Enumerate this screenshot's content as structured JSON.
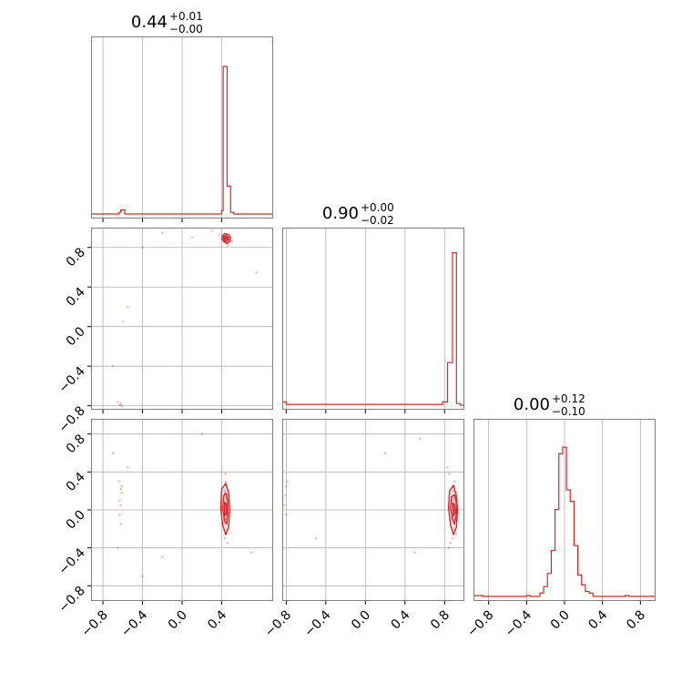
{
  "chart_data": {
    "type": "corner",
    "colors": {
      "series": "#d62728",
      "grid": "#b0b0b0",
      "frame": "#808080"
    },
    "grid": true,
    "ranges": [
      [
        -0.92,
        0.92
      ],
      [
        -0.84,
        1.0
      ],
      [
        -0.96,
        0.96
      ]
    ],
    "ticks": [
      {
        "values": [
          -0.8,
          -0.4,
          0.0,
          0.4
        ],
        "labels": [
          "−0.8",
          "−0.4",
          "0.0",
          "0.4"
        ]
      },
      {
        "values": [
          -0.8,
          -0.4,
          0.0,
          0.4,
          0.8
        ],
        "labels": [
          "−0.8",
          "−0.4",
          "0.0",
          "0.4",
          "0.8"
        ]
      },
      {
        "values": [
          -0.8,
          -0.4,
          0.0,
          0.4,
          0.8
        ],
        "labels": [
          "−0.8",
          "−0.4",
          "0.0",
          "0.4",
          "0.8"
        ]
      }
    ],
    "titles": [
      {
        "median": "0.44",
        "plus": "+0.01",
        "minus": "−0.00"
      },
      {
        "median": "0.90",
        "plus": "+0.00",
        "minus": "−0.02"
      },
      {
        "median": "0.00",
        "plus": "+0.12",
        "minus": "−0.10"
      }
    ],
    "histograms": [
      {
        "param": 0,
        "ymax": 1.0,
        "bins": [
          {
            "x0": -0.92,
            "x1": -0.64,
            "count": 0.0
          },
          {
            "x0": -0.64,
            "x1": -0.62,
            "count": 0.01
          },
          {
            "x0": -0.62,
            "x1": -0.58,
            "count": 0.025
          },
          {
            "x0": -0.58,
            "x1": 0.4,
            "count": 0.0
          },
          {
            "x0": 0.4,
            "x1": 0.415,
            "count": 0.02
          },
          {
            "x0": 0.415,
            "x1": 0.455,
            "count": 0.9
          },
          {
            "x0": 0.455,
            "x1": 0.49,
            "count": 0.17
          },
          {
            "x0": 0.49,
            "x1": 0.52,
            "count": 0.01
          },
          {
            "x0": 0.52,
            "x1": 0.92,
            "count": 0.0
          }
        ]
      },
      {
        "param": 1,
        "ymax": 1.0,
        "bins": [
          {
            "x0": -0.84,
            "x1": -0.8,
            "count": 0.02
          },
          {
            "x0": -0.8,
            "x1": 0.78,
            "count": 0.005
          },
          {
            "x0": 0.78,
            "x1": 0.83,
            "count": 0.02
          },
          {
            "x0": 0.83,
            "x1": 0.88,
            "count": 0.26
          },
          {
            "x0": 0.88,
            "x1": 0.92,
            "count": 0.93
          },
          {
            "x0": 0.92,
            "x1": 0.96,
            "count": 0.01
          },
          {
            "x0": 0.96,
            "x1": 1.0,
            "count": 0.0
          }
        ]
      },
      {
        "param": 2,
        "ymax": 1.0,
        "bins": [
          {
            "x0": -0.96,
            "x1": -0.86,
            "count": 0.005
          },
          {
            "x0": -0.86,
            "x1": -0.4,
            "count": 0.0
          },
          {
            "x0": -0.4,
            "x1": -0.36,
            "count": 0.005
          },
          {
            "x0": -0.36,
            "x1": -0.26,
            "count": 0.0
          },
          {
            "x0": -0.26,
            "x1": -0.22,
            "count": 0.02
          },
          {
            "x0": -0.22,
            "x1": -0.18,
            "count": 0.06
          },
          {
            "x0": -0.18,
            "x1": -0.14,
            "count": 0.14
          },
          {
            "x0": -0.14,
            "x1": -0.1,
            "count": 0.28
          },
          {
            "x0": -0.1,
            "x1": -0.06,
            "count": 0.53
          },
          {
            "x0": -0.06,
            "x1": -0.02,
            "count": 0.87
          },
          {
            "x0": -0.02,
            "x1": 0.02,
            "count": 0.91
          },
          {
            "x0": 0.02,
            "x1": 0.06,
            "count": 0.65
          },
          {
            "x0": 0.06,
            "x1": 0.1,
            "count": 0.58
          },
          {
            "x0": 0.1,
            "x1": 0.14,
            "count": 0.31
          },
          {
            "x0": 0.14,
            "x1": 0.18,
            "count": 0.13
          },
          {
            "x0": 0.18,
            "x1": 0.22,
            "count": 0.07
          },
          {
            "x0": 0.22,
            "x1": 0.26,
            "count": 0.03
          },
          {
            "x0": 0.26,
            "x1": 0.3,
            "count": 0.02
          },
          {
            "x0": 0.3,
            "x1": 0.64,
            "count": 0.0
          },
          {
            "x0": 0.64,
            "x1": 0.68,
            "count": 0.005
          },
          {
            "x0": 0.68,
            "x1": 0.96,
            "count": 0.0
          }
        ]
      }
    ],
    "pairs": [
      {
        "x_param": 0,
        "y_param": 1,
        "points": [
          [
            0.44,
            0.92
          ],
          [
            0.45,
            0.9
          ],
          [
            0.43,
            0.89
          ],
          [
            0.46,
            0.88
          ],
          [
            0.44,
            0.86
          ],
          [
            0.47,
            0.85
          ],
          [
            0.42,
            0.91
          ],
          [
            0.48,
            0.87
          ],
          [
            0.45,
            0.93
          ],
          [
            0.41,
            0.88
          ],
          [
            0.46,
            0.82
          ],
          [
            0.5,
            0.86
          ],
          [
            0.38,
            0.93
          ],
          [
            0.3,
            0.97
          ],
          [
            -0.62,
            -0.78
          ],
          [
            -0.61,
            -0.8
          ],
          [
            -0.63,
            -0.79
          ],
          [
            -0.65,
            -0.76
          ],
          [
            -0.7,
            -0.4
          ],
          [
            -0.55,
            0.2
          ],
          [
            -0.4,
            0.8
          ],
          [
            -0.2,
            0.95
          ],
          [
            0.75,
            0.55
          ],
          [
            -0.6,
            0.05
          ],
          [
            0.1,
            0.9
          ]
        ],
        "contours": [
          [
            [
              0.41,
              0.92
            ],
            [
              0.43,
              0.94
            ],
            [
              0.47,
              0.93
            ],
            [
              0.49,
              0.9
            ],
            [
              0.48,
              0.86
            ],
            [
              0.45,
              0.84
            ],
            [
              0.42,
              0.86
            ],
            [
              0.4,
              0.89
            ]
          ],
          [
            [
              0.42,
              0.91
            ],
            [
              0.44,
              0.92
            ],
            [
              0.46,
              0.91
            ],
            [
              0.47,
              0.89
            ],
            [
              0.46,
              0.87
            ],
            [
              0.44,
              0.86
            ],
            [
              0.42,
              0.88
            ]
          ],
          [
            [
              0.43,
              0.9
            ],
            [
              0.45,
              0.9
            ],
            [
              0.46,
              0.89
            ],
            [
              0.45,
              0.88
            ],
            [
              0.44,
              0.88
            ]
          ]
        ]
      },
      {
        "x_param": 0,
        "y_param": 2,
        "points": [
          [
            0.44,
            0.05
          ],
          [
            0.45,
            -0.1
          ],
          [
            0.43,
            0.2
          ],
          [
            0.46,
            -0.05
          ],
          [
            0.44,
            0.3
          ],
          [
            0.45,
            -0.25
          ],
          [
            0.42,
            0.1
          ],
          [
            0.47,
            0.15
          ],
          [
            0.43,
            -0.3
          ],
          [
            0.44,
            0.38
          ],
          [
            0.46,
            -0.35
          ],
          [
            0.41,
            0.0
          ],
          [
            -0.62,
            0.22
          ],
          [
            -0.61,
            0.18
          ],
          [
            -0.63,
            0.1
          ],
          [
            -0.62,
            0.05
          ],
          [
            -0.61,
            0.25
          ],
          [
            -0.63,
            -0.05
          ],
          [
            -0.64,
            0.3
          ],
          [
            -0.62,
            -0.15
          ],
          [
            -0.7,
            0.6
          ],
          [
            -0.55,
            0.45
          ],
          [
            -0.2,
            -0.5
          ],
          [
            0.7,
            -0.45
          ],
          [
            -0.4,
            -0.7
          ],
          [
            0.2,
            0.8
          ],
          [
            -0.65,
            -0.4
          ]
        ],
        "contours": [
          [
            [
              0.4,
              0.22
            ],
            [
              0.44,
              0.28
            ],
            [
              0.47,
              0.18
            ],
            [
              0.48,
              0.0
            ],
            [
              0.47,
              -0.18
            ],
            [
              0.44,
              -0.26
            ],
            [
              0.41,
              -0.16
            ],
            [
              0.39,
              0.02
            ]
          ],
          [
            [
              0.42,
              0.15
            ],
            [
              0.44,
              0.18
            ],
            [
              0.46,
              0.1
            ],
            [
              0.46,
              -0.05
            ],
            [
              0.45,
              -0.15
            ],
            [
              0.43,
              -0.12
            ],
            [
              0.41,
              0.02
            ]
          ],
          [
            [
              0.43,
              0.08
            ],
            [
              0.45,
              0.06
            ],
            [
              0.45,
              -0.04
            ],
            [
              0.43,
              -0.06
            ]
          ]
        ]
      },
      {
        "x_param": 1,
        "y_param": 2,
        "points": [
          [
            0.9,
            0.05
          ],
          [
            0.91,
            -0.1
          ],
          [
            0.89,
            0.2
          ],
          [
            0.88,
            -0.05
          ],
          [
            0.9,
            0.3
          ],
          [
            0.92,
            -0.25
          ],
          [
            0.87,
            0.1
          ],
          [
            0.91,
            0.15
          ],
          [
            0.88,
            -0.3
          ],
          [
            0.85,
            0.38
          ],
          [
            0.86,
            -0.35
          ],
          [
            0.89,
            0.0
          ],
          [
            -0.8,
            0.25
          ],
          [
            -0.81,
            0.15
          ],
          [
            -0.82,
            0.05
          ],
          [
            -0.79,
            0.3
          ],
          [
            -0.8,
            -0.05
          ],
          [
            0.55,
            0.75
          ],
          [
            0.5,
            -0.45
          ],
          [
            0.2,
            0.6
          ],
          [
            -0.5,
            -0.3
          ],
          [
            0.84,
            -0.4
          ],
          [
            0.83,
            0.45
          ]
        ],
        "contours": [
          [
            [
              0.85,
              0.2
            ],
            [
              0.89,
              0.26
            ],
            [
              0.92,
              0.15
            ],
            [
              0.93,
              0.0
            ],
            [
              0.92,
              -0.18
            ],
            [
              0.89,
              -0.26
            ],
            [
              0.86,
              -0.16
            ],
            [
              0.84,
              0.02
            ]
          ],
          [
            [
              0.87,
              0.14
            ],
            [
              0.9,
              0.16
            ],
            [
              0.92,
              0.08
            ],
            [
              0.92,
              -0.06
            ],
            [
              0.9,
              -0.15
            ],
            [
              0.88,
              -0.1
            ],
            [
              0.86,
              0.02
            ]
          ],
          [
            [
              0.88,
              0.07
            ],
            [
              0.9,
              0.06
            ],
            [
              0.91,
              -0.03
            ],
            [
              0.89,
              -0.06
            ]
          ]
        ]
      }
    ]
  }
}
